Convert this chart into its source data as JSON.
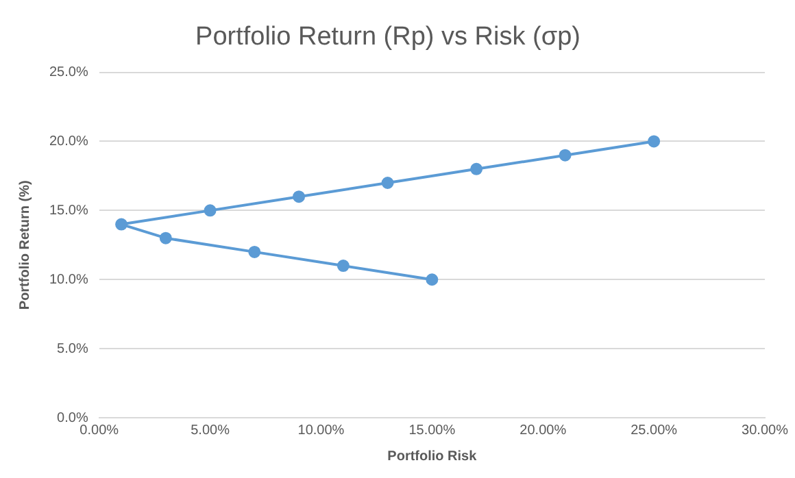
{
  "chart_data": {
    "type": "line",
    "title": "Portfolio Return (Rp) vs Risk (σp)",
    "xlabel": "Portfolio Risk",
    "ylabel": "Portfolio Return (%)",
    "x": [
      15,
      11,
      7,
      3,
      1,
      5,
      9,
      13,
      17,
      21,
      25
    ],
    "series": [
      {
        "color": "#5b9bd5",
        "values": [
          10,
          11,
          12,
          13,
          14,
          15,
          16,
          17,
          18,
          19,
          20
        ]
      }
    ],
    "xlim": [
      0,
      30
    ],
    "ylim": [
      0,
      25
    ],
    "xticks": [
      {
        "value": 0,
        "label": "0.00%"
      },
      {
        "value": 5,
        "label": "5.00%"
      },
      {
        "value": 10,
        "label": "10.00%"
      },
      {
        "value": 15,
        "label": "15.00%"
      },
      {
        "value": 20,
        "label": "20.00%"
      },
      {
        "value": 25,
        "label": "25.00%"
      },
      {
        "value": 30,
        "label": "30.00%"
      }
    ],
    "yticks": [
      {
        "value": 0,
        "label": "0.0%"
      },
      {
        "value": 5,
        "label": "5.0%"
      },
      {
        "value": 10,
        "label": "10.0%"
      },
      {
        "value": 15,
        "label": "15.0%"
      },
      {
        "value": 20,
        "label": "20.0%"
      },
      {
        "value": 25,
        "label": "25.0%"
      }
    ],
    "grid": "y",
    "legend": false,
    "marker": "circle",
    "line_style": "solid"
  }
}
